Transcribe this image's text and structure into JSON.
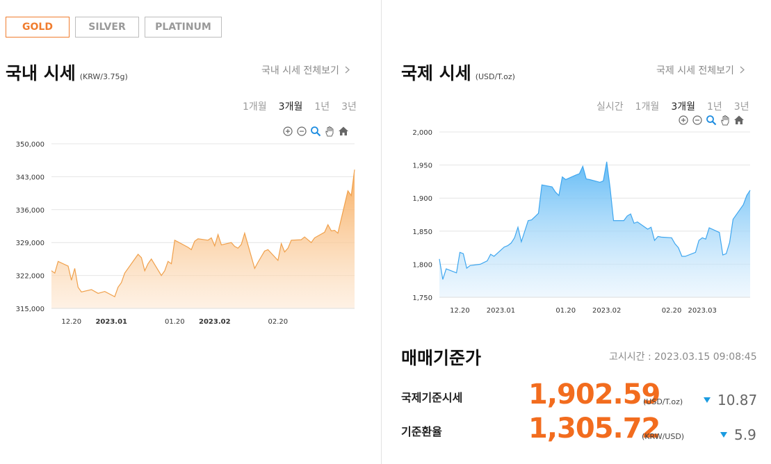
{
  "tabs": [
    {
      "label": "GOLD",
      "active": true
    },
    {
      "label": "SILVER",
      "active": false
    },
    {
      "label": "PLATINUM",
      "active": false
    }
  ],
  "domestic": {
    "title": "국내 시세",
    "unit": "(KRW/3.75g)",
    "view_all": "국내 시세 전체보기",
    "periods": [
      {
        "label": "1개월",
        "active": false
      },
      {
        "label": "3개월",
        "active": true
      },
      {
        "label": "1년",
        "active": false
      },
      {
        "label": "3년",
        "active": false
      }
    ]
  },
  "international": {
    "title": "국제 시세",
    "unit": "(USD/T.oz)",
    "view_all": "국제 시세 전체보기",
    "periods": [
      {
        "label": "실시간",
        "active": false
      },
      {
        "label": "1개월",
        "active": false
      },
      {
        "label": "3개월",
        "active": true
      },
      {
        "label": "1년",
        "active": false
      },
      {
        "label": "3년",
        "active": false
      }
    ]
  },
  "tool_icons": [
    "zoom-in-icon",
    "zoom-out-icon",
    "magnifier-icon",
    "hand-pan-icon",
    "home-icon"
  ],
  "base_price": {
    "title": "매매기준가",
    "notice_label": "고시시간 :",
    "notice_time": "2023.03.15 09:08:45",
    "rows": [
      {
        "label": "국제기준시세",
        "value": "1,902.59",
        "unit": "(USD/T.oz)",
        "change": "10.87",
        "direction": "down"
      },
      {
        "label": "기준환율",
        "value": "1,305.72",
        "unit": "(KRW/USD)",
        "change": "5.9",
        "direction": "down"
      }
    ]
  },
  "colors": {
    "accent": "#f07d2f",
    "price": "#f26c1e",
    "domestic_line": "#f0a04b",
    "international_line": "#3ea6ef",
    "down": "#1a9be0"
  },
  "chart_data": [
    {
      "type": "area",
      "series_name": "국내 시세",
      "ylim": [
        315000,
        350000
      ],
      "yticks": [
        "315,000",
        "322,000",
        "329,000",
        "336,000",
        "343,000",
        "350,000"
      ],
      "ytick_values": [
        315000,
        322000,
        329000,
        336000,
        343000,
        350000
      ],
      "xlim": [
        "2022-12-14",
        "2023-03-15"
      ],
      "xticks": [
        {
          "label": "12.20",
          "date": "2022-12-20",
          "bold": false
        },
        {
          "label": "2023.01",
          "date": "2023-01-01",
          "bold": true
        },
        {
          "label": "01.20",
          "date": "2023-01-20",
          "bold": false
        },
        {
          "label": "2023.02",
          "date": "2023-02-01",
          "bold": true
        },
        {
          "label": "02.20",
          "date": "2023-02-20",
          "bold": false
        }
      ],
      "grid": true,
      "points": [
        [
          "2022-12-14",
          323000
        ],
        [
          "2022-12-15",
          322500
        ],
        [
          "2022-12-16",
          325000
        ],
        [
          "2022-12-19",
          324000
        ],
        [
          "2022-12-20",
          321000
        ],
        [
          "2022-12-21",
          323500
        ],
        [
          "2022-12-22",
          319500
        ],
        [
          "2022-12-23",
          318500
        ],
        [
          "2022-12-26",
          319000
        ],
        [
          "2022-12-28",
          318200
        ],
        [
          "2022-12-30",
          318600
        ],
        [
          "2023-01-02",
          317500
        ],
        [
          "2023-01-03",
          319500
        ],
        [
          "2023-01-04",
          320500
        ],
        [
          "2023-01-05",
          322500
        ],
        [
          "2023-01-06",
          323500
        ],
        [
          "2023-01-09",
          326500
        ],
        [
          "2023-01-10",
          325800
        ],
        [
          "2023-01-11",
          323000
        ],
        [
          "2023-01-12",
          324500
        ],
        [
          "2023-01-13",
          325500
        ],
        [
          "2023-01-16",
          322000
        ],
        [
          "2023-01-17",
          323000
        ],
        [
          "2023-01-18",
          325000
        ],
        [
          "2023-01-19",
          324500
        ],
        [
          "2023-01-20",
          329500
        ],
        [
          "2023-01-24",
          328000
        ],
        [
          "2023-01-25",
          327500
        ],
        [
          "2023-01-26",
          329300
        ],
        [
          "2023-01-27",
          329800
        ],
        [
          "2023-01-30",
          329500
        ],
        [
          "2023-01-31",
          330000
        ],
        [
          "2023-02-01",
          328300
        ],
        [
          "2023-02-02",
          330700
        ],
        [
          "2023-02-03",
          328500
        ],
        [
          "2023-02-06",
          329000
        ],
        [
          "2023-02-07",
          328200
        ],
        [
          "2023-02-08",
          327800
        ],
        [
          "2023-02-09",
          328600
        ],
        [
          "2023-02-10",
          331000
        ],
        [
          "2023-02-13",
          323500
        ],
        [
          "2023-02-14",
          324800
        ],
        [
          "2023-02-15",
          326000
        ],
        [
          "2023-02-16",
          327200
        ],
        [
          "2023-02-17",
          327500
        ],
        [
          "2023-02-20",
          325200
        ],
        [
          "2023-02-21",
          328800
        ],
        [
          "2023-02-22",
          327000
        ],
        [
          "2023-02-23",
          327800
        ],
        [
          "2023-02-24",
          329500
        ],
        [
          "2023-02-27",
          329600
        ],
        [
          "2023-02-28",
          330200
        ],
        [
          "2023-03-02",
          329000
        ],
        [
          "2023-03-03",
          330000
        ],
        [
          "2023-03-06",
          331200
        ],
        [
          "2023-03-07",
          332800
        ],
        [
          "2023-03-08",
          331500
        ],
        [
          "2023-03-09",
          331600
        ],
        [
          "2023-03-10",
          331000
        ],
        [
          "2023-03-13",
          340000
        ],
        [
          "2023-03-14",
          339000
        ],
        [
          "2023-03-15",
          344500
        ]
      ]
    },
    {
      "type": "area",
      "series_name": "국제 시세",
      "ylim": [
        1750,
        2000
      ],
      "yticks": [
        "1,750",
        "1,800",
        "1,850",
        "1,900",
        "1,950",
        "2,000"
      ],
      "ytick_values": [
        1750,
        1800,
        1850,
        1900,
        1950,
        2000
      ],
      "xlim": [
        "2022-12-14",
        "2023-03-15"
      ],
      "xticks": [
        {
          "label": "12.20",
          "date": "2022-12-20",
          "bold": false
        },
        {
          "label": "2023.01",
          "date": "2023-01-01",
          "bold": false
        },
        {
          "label": "01.20",
          "date": "2023-01-20",
          "bold": false
        },
        {
          "label": "2023.02",
          "date": "2023-02-01",
          "bold": false
        },
        {
          "label": "02.20",
          "date": "2023-02-20",
          "bold": false
        },
        {
          "label": "2023.03",
          "date": "2023-03-01",
          "bold": false
        }
      ],
      "grid": true,
      "points": [
        [
          "2022-12-14",
          1808
        ],
        [
          "2022-12-15",
          1777
        ],
        [
          "2022-12-16",
          1793
        ],
        [
          "2022-12-19",
          1787
        ],
        [
          "2022-12-20",
          1818
        ],
        [
          "2022-12-21",
          1816
        ],
        [
          "2022-12-22",
          1794
        ],
        [
          "2022-12-23",
          1798
        ],
        [
          "2022-12-26",
          1800
        ],
        [
          "2022-12-28",
          1805
        ],
        [
          "2022-12-29",
          1815
        ],
        [
          "2022-12-30",
          1812
        ],
        [
          "2023-01-02",
          1826
        ],
        [
          "2023-01-03",
          1828
        ],
        [
          "2023-01-04",
          1832
        ],
        [
          "2023-01-05",
          1840
        ],
        [
          "2023-01-06",
          1856
        ],
        [
          "2023-01-07",
          1834
        ],
        [
          "2023-01-09",
          1866
        ],
        [
          "2023-01-10",
          1867
        ],
        [
          "2023-01-11",
          1872
        ],
        [
          "2023-01-12",
          1877
        ],
        [
          "2023-01-13",
          1920
        ],
        [
          "2023-01-16",
          1917
        ],
        [
          "2023-01-17",
          1909
        ],
        [
          "2023-01-18",
          1904
        ],
        [
          "2023-01-19",
          1932
        ],
        [
          "2023-01-20",
          1928
        ],
        [
          "2023-01-23",
          1935
        ],
        [
          "2023-01-24",
          1937
        ],
        [
          "2023-01-25",
          1948
        ],
        [
          "2023-01-26",
          1929
        ],
        [
          "2023-01-27",
          1928
        ],
        [
          "2023-01-30",
          1924
        ],
        [
          "2023-01-31",
          1926
        ],
        [
          "2023-02-01",
          1955
        ],
        [
          "2023-02-02",
          1915
        ],
        [
          "2023-02-03",
          1866
        ],
        [
          "2023-02-06",
          1866
        ],
        [
          "2023-02-07",
          1873
        ],
        [
          "2023-02-08",
          1876
        ],
        [
          "2023-02-09",
          1862
        ],
        [
          "2023-02-10",
          1864
        ],
        [
          "2023-02-13",
          1853
        ],
        [
          "2023-02-14",
          1856
        ],
        [
          "2023-02-15",
          1836
        ],
        [
          "2023-02-16",
          1842
        ],
        [
          "2023-02-17",
          1841
        ],
        [
          "2023-02-20",
          1840
        ],
        [
          "2023-02-21",
          1831
        ],
        [
          "2023-02-22",
          1825
        ],
        [
          "2023-02-23",
          1812
        ],
        [
          "2023-02-24",
          1812
        ],
        [
          "2023-02-27",
          1818
        ],
        [
          "2023-02-28",
          1836
        ],
        [
          "2023-03-01",
          1840
        ],
        [
          "2023-03-02",
          1838
        ],
        [
          "2023-03-03",
          1855
        ],
        [
          "2023-03-06",
          1848
        ],
        [
          "2023-03-07",
          1814
        ],
        [
          "2023-03-08",
          1816
        ],
        [
          "2023-03-09",
          1833
        ],
        [
          "2023-03-10",
          1868
        ],
        [
          "2023-03-13",
          1890
        ],
        [
          "2023-03-14",
          1904
        ],
        [
          "2023-03-15",
          1912
        ]
      ]
    }
  ]
}
